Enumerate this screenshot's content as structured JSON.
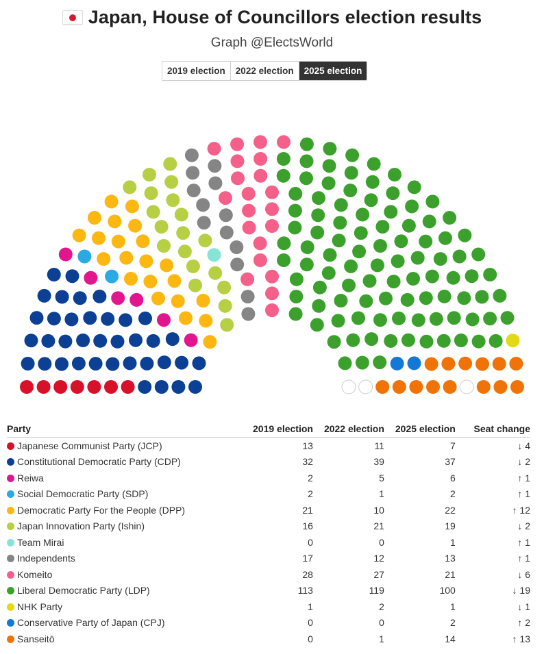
{
  "header": {
    "flag_icon": "japan-flag-icon",
    "title": "Japan, House of Councillors election results",
    "subtitle": "Graph @ElectsWorld"
  },
  "tabs": [
    {
      "label": "2019 election",
      "active": false
    },
    {
      "label": "2022 election",
      "active": false
    },
    {
      "label": "2025 election",
      "active": true
    }
  ],
  "table": {
    "headers": {
      "party": "Party",
      "e2019": "2019 election",
      "e2022": "2022 election",
      "e2025": "2025 election",
      "change": "Seat change"
    }
  },
  "chart_data": {
    "type": "hemicycle",
    "title": "Japan, House of Councillors election results",
    "selected_election": "2025 election",
    "total_seats": 248,
    "vacant_seats": 3,
    "vacant_color": "#ffffff",
    "parties": [
      {
        "name": "Japanese Communist Party (JCP)",
        "color": "#d7112a",
        "e2019": 13,
        "e2022": 11,
        "e2025": 7,
        "change": "↓ 4",
        "dir": "down"
      },
      {
        "name": "Constitutional Democratic Party (CDP)",
        "color": "#0b4095",
        "e2019": 32,
        "e2022": 39,
        "e2025": 37,
        "change": "↓ 2",
        "dir": "down"
      },
      {
        "name": "Reiwa",
        "color": "#e1168f",
        "e2019": 2,
        "e2022": 5,
        "e2025": 6,
        "change": "↑ 1",
        "dir": "up"
      },
      {
        "name": "Social Democratic Party (SDP)",
        "color": "#2aaae3",
        "e2019": 2,
        "e2022": 1,
        "e2025": 2,
        "change": "↑ 1",
        "dir": "up"
      },
      {
        "name": "Democratic Party For the People (DPP)",
        "color": "#fcb711",
        "e2019": 21,
        "e2022": 10,
        "e2025": 22,
        "change": "↑ 12",
        "dir": "up"
      },
      {
        "name": "Japan Innovation Party (Ishin)",
        "color": "#b6cf43",
        "e2019": 16,
        "e2022": 21,
        "e2025": 19,
        "change": "↓ 2",
        "dir": "down"
      },
      {
        "name": "Team Mirai",
        "color": "#86e3d6",
        "e2019": 0,
        "e2022": 0,
        "e2025": 1,
        "change": "↑ 1",
        "dir": "up"
      },
      {
        "name": "Independents",
        "color": "#858585",
        "e2019": 17,
        "e2022": 12,
        "e2025": 13,
        "change": "↑ 1",
        "dir": "up"
      },
      {
        "name": "Komeito",
        "color": "#f4608a",
        "e2019": 28,
        "e2022": 27,
        "e2025": 21,
        "change": "↓ 6",
        "dir": "down"
      },
      {
        "name": "Liberal Democratic Party (LDP)",
        "color": "#3ba12c",
        "e2019": 113,
        "e2022": 119,
        "e2025": 100,
        "change": "↓ 19",
        "dir": "down"
      },
      {
        "name": "NHK Party",
        "color": "#e5d915",
        "e2019": 1,
        "e2022": 2,
        "e2025": 1,
        "change": "↓ 1",
        "dir": "down"
      },
      {
        "name": "Conservative Party of Japan (CPJ)",
        "color": "#1479d6",
        "e2019": 0,
        "e2022": 0,
        "e2025": 2,
        "change": "↑ 2",
        "dir": "up"
      },
      {
        "name": "Sanseitō",
        "color": "#ef7306",
        "e2019": 0,
        "e2022": 1,
        "e2025": 14,
        "change": "↑ 13",
        "dir": "up"
      }
    ]
  }
}
